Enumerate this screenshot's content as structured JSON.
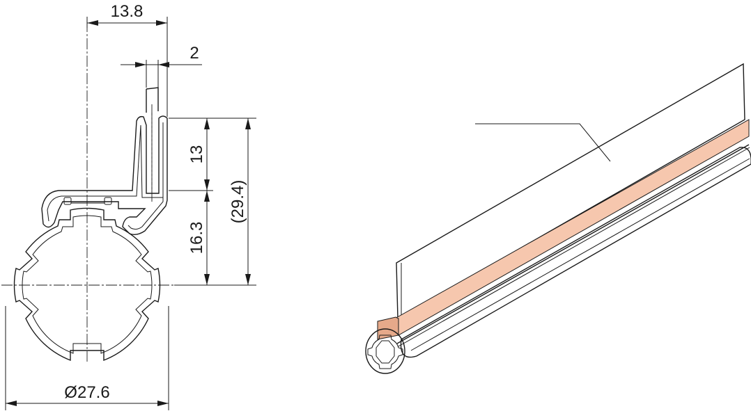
{
  "dimensions": {
    "width_top": "13.8",
    "thickness": "2",
    "height_upper": "13",
    "height_lower": "16.3",
    "height_total": "(29.4)",
    "diameter": "Ø27.6"
  },
  "colors": {
    "line": "#1a1a1a",
    "strip_fill": "#f6c7ae",
    "strip_edge": "#e6a98a",
    "background": "#ffffff"
  }
}
